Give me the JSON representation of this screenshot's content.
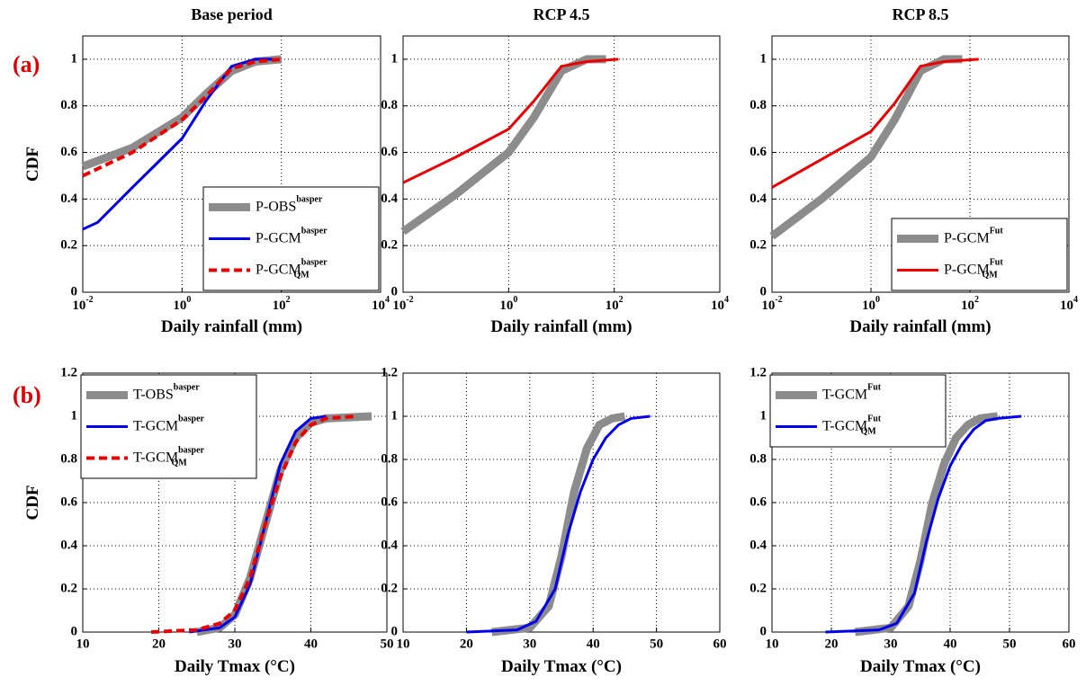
{
  "panel_labels": [
    "(a)",
    "(b)"
  ],
  "chart_data": [
    {
      "type": "line",
      "title": "Base period",
      "xlabel": "Daily rainfall (mm)",
      "ylabel": "CDF",
      "xscale": "log",
      "xlim": [
        0.01,
        10000
      ],
      "ylim": [
        0,
        1.1
      ],
      "grid": true,
      "legend": "lower right",
      "xticks": [
        {
          "value": 0.01,
          "label": "10",
          "exponent": "-2"
        },
        {
          "value": 1,
          "label": "10",
          "exponent": "0"
        },
        {
          "value": 100,
          "label": "10",
          "exponent": "2"
        },
        {
          "value": 10000,
          "label": "10",
          "exponent": "4"
        }
      ],
      "yticks": [
        0,
        0.2,
        0.4,
        0.6,
        0.8,
        1
      ],
      "series": [
        {
          "name": "P-OBS",
          "name_sup": "basper",
          "color": "#8c8c8c",
          "x": [
            0.01,
            0.1,
            1,
            3,
            10,
            30,
            100
          ],
          "values": [
            0.54,
            0.62,
            0.75,
            0.85,
            0.95,
            0.99,
            1.0
          ]
        },
        {
          "name": "P-GCM",
          "name_sup": "basper",
          "color": "#0000ee",
          "x": [
            0.01,
            0.02,
            0.1,
            0.3,
            1,
            3,
            10,
            30,
            70
          ],
          "values": [
            0.27,
            0.3,
            0.45,
            0.55,
            0.66,
            0.82,
            0.97,
            1.0,
            1.0
          ]
        },
        {
          "name": "P-GCM",
          "name_sup": "basper",
          "name_sub": "QM",
          "color": "#ee0000",
          "linestyle": "dashed",
          "x": [
            0.01,
            0.1,
            1,
            3,
            10,
            30,
            100
          ],
          "values": [
            0.5,
            0.6,
            0.74,
            0.84,
            0.96,
            0.99,
            1.0
          ]
        }
      ]
    },
    {
      "type": "line",
      "title": "RCP 4.5",
      "xlabel": "Daily rainfall (mm)",
      "xscale": "log",
      "xlim": [
        0.01,
        10000
      ],
      "ylim": [
        0,
        1.1
      ],
      "grid": true,
      "xticks": [
        {
          "value": 0.01,
          "label": "10",
          "exponent": "-2"
        },
        {
          "value": 1,
          "label": "10",
          "exponent": "0"
        },
        {
          "value": 100,
          "label": "10",
          "exponent": "2"
        },
        {
          "value": 10000,
          "label": "10",
          "exponent": "4"
        }
      ],
      "yticks": [
        0,
        0.2,
        0.4,
        0.6,
        0.8,
        1
      ],
      "series": [
        {
          "color": "#8c8c8c",
          "x": [
            0.01,
            0.1,
            1,
            3,
            10,
            30,
            70
          ],
          "values": [
            0.26,
            0.42,
            0.6,
            0.75,
            0.95,
            1.0,
            1.0
          ]
        },
        {
          "color": "#ee0000",
          "x": [
            0.01,
            0.1,
            1,
            3,
            10,
            30,
            120
          ],
          "values": [
            0.47,
            0.58,
            0.7,
            0.82,
            0.97,
            0.99,
            1.0
          ]
        }
      ]
    },
    {
      "type": "line",
      "title": "RCP 8.5",
      "xlabel": "Daily rainfall (mm)",
      "xscale": "log",
      "xlim": [
        0.01,
        10000
      ],
      "ylim": [
        0,
        1.1
      ],
      "grid": true,
      "legend": "lower right",
      "xticks": [
        {
          "value": 0.01,
          "label": "10",
          "exponent": "-2"
        },
        {
          "value": 1,
          "label": "10",
          "exponent": "0"
        },
        {
          "value": 100,
          "label": "10",
          "exponent": "2"
        },
        {
          "value": 10000,
          "label": "10",
          "exponent": "4"
        }
      ],
      "yticks": [
        0,
        0.2,
        0.4,
        0.6,
        0.8,
        1
      ],
      "series": [
        {
          "name": "P-GCM",
          "name_sup": "Fut",
          "color": "#8c8c8c",
          "x": [
            0.01,
            0.1,
            1,
            3,
            10,
            30,
            70
          ],
          "values": [
            0.24,
            0.4,
            0.58,
            0.74,
            0.95,
            1.0,
            1.0
          ]
        },
        {
          "name": "P-GCM",
          "name_sup": "Fut",
          "name_sub": "QM",
          "color": "#ee0000",
          "x": [
            0.01,
            0.1,
            1,
            3,
            10,
            30,
            150
          ],
          "values": [
            0.45,
            0.57,
            0.69,
            0.81,
            0.97,
            0.99,
            1.0
          ]
        }
      ]
    },
    {
      "type": "line",
      "xlabel": "Daily Tmax (°C)",
      "ylabel": "CDF",
      "xlim": [
        10,
        50
      ],
      "ylim": [
        0,
        1.2
      ],
      "grid": true,
      "legend": "upper left",
      "xticks": [
        10,
        20,
        30,
        40,
        50
      ],
      "yticks": [
        0,
        0.2,
        0.4,
        0.6,
        0.8,
        1,
        1.2
      ],
      "series": [
        {
          "name": "T-OBS",
          "name_sup": "basper",
          "color": "#8c8c8c",
          "x": [
            25,
            28,
            30,
            32,
            34,
            36,
            38,
            40,
            42,
            48
          ],
          "values": [
            0,
            0.02,
            0.08,
            0.25,
            0.5,
            0.75,
            0.9,
            0.97,
            0.99,
            1.0
          ]
        },
        {
          "name": "T-GCM",
          "name_sup": "basper",
          "color": "#0000ee",
          "x": [
            24,
            28,
            30,
            32,
            34,
            36,
            38,
            40,
            42
          ],
          "values": [
            0,
            0.02,
            0.07,
            0.22,
            0.5,
            0.78,
            0.93,
            0.99,
            1.0
          ]
        },
        {
          "name": "T-GCM",
          "name_sup": "basper",
          "name_sub": "QM",
          "color": "#ee0000",
          "linestyle": "dashed",
          "x": [
            19,
            25,
            28,
            30,
            32,
            34,
            36,
            38,
            40,
            42,
            46
          ],
          "values": [
            0,
            0.01,
            0.04,
            0.1,
            0.25,
            0.5,
            0.72,
            0.88,
            0.96,
            0.99,
            1.0
          ]
        }
      ]
    },
    {
      "type": "line",
      "xlabel": "Daily Tmax (°C)",
      "xlim": [
        10,
        60
      ],
      "ylim": [
        0,
        1.2
      ],
      "grid": true,
      "xticks": [
        10,
        20,
        30,
        40,
        50,
        60
      ],
      "yticks": [
        0,
        0.2,
        0.4,
        0.6,
        0.8,
        1,
        1.2
      ],
      "series": [
        {
          "color": "#8c8c8c",
          "x": [
            24,
            30,
            33,
            35,
            37,
            39,
            41,
            43,
            45
          ],
          "values": [
            0,
            0.02,
            0.12,
            0.35,
            0.65,
            0.85,
            0.96,
            0.99,
            1.0
          ]
        },
        {
          "color": "#0000ee",
          "x": [
            20,
            28,
            31,
            34,
            36,
            38,
            40,
            42,
            44,
            46,
            49
          ],
          "values": [
            0,
            0.01,
            0.05,
            0.2,
            0.45,
            0.65,
            0.8,
            0.9,
            0.96,
            0.99,
            1.0
          ]
        }
      ]
    },
    {
      "type": "line",
      "xlabel": "Daily Tmax (°C)",
      "xlim": [
        10,
        60
      ],
      "ylim": [
        0,
        1.2
      ],
      "grid": true,
      "legend": "upper left",
      "xticks": [
        10,
        20,
        30,
        40,
        50,
        60
      ],
      "yticks": [
        0,
        0.2,
        0.4,
        0.6,
        0.8,
        1,
        1.2
      ],
      "series": [
        {
          "name": "T-GCM",
          "name_sup": "Fut",
          "color": "#8c8c8c",
          "x": [
            24,
            30,
            33,
            35,
            37,
            39,
            41,
            43,
            45,
            48
          ],
          "values": [
            0,
            0.02,
            0.12,
            0.33,
            0.6,
            0.78,
            0.9,
            0.96,
            0.99,
            1.0
          ]
        },
        {
          "name": "T-GCM",
          "name_sup": "Fut",
          "name_sub": "QM",
          "color": "#0000ee",
          "x": [
            19,
            28,
            31,
            34,
            36,
            38,
            40,
            42,
            44,
            46,
            48,
            52
          ],
          "values": [
            0,
            0.01,
            0.04,
            0.18,
            0.42,
            0.62,
            0.77,
            0.87,
            0.94,
            0.98,
            0.99,
            1.0
          ]
        }
      ]
    }
  ]
}
